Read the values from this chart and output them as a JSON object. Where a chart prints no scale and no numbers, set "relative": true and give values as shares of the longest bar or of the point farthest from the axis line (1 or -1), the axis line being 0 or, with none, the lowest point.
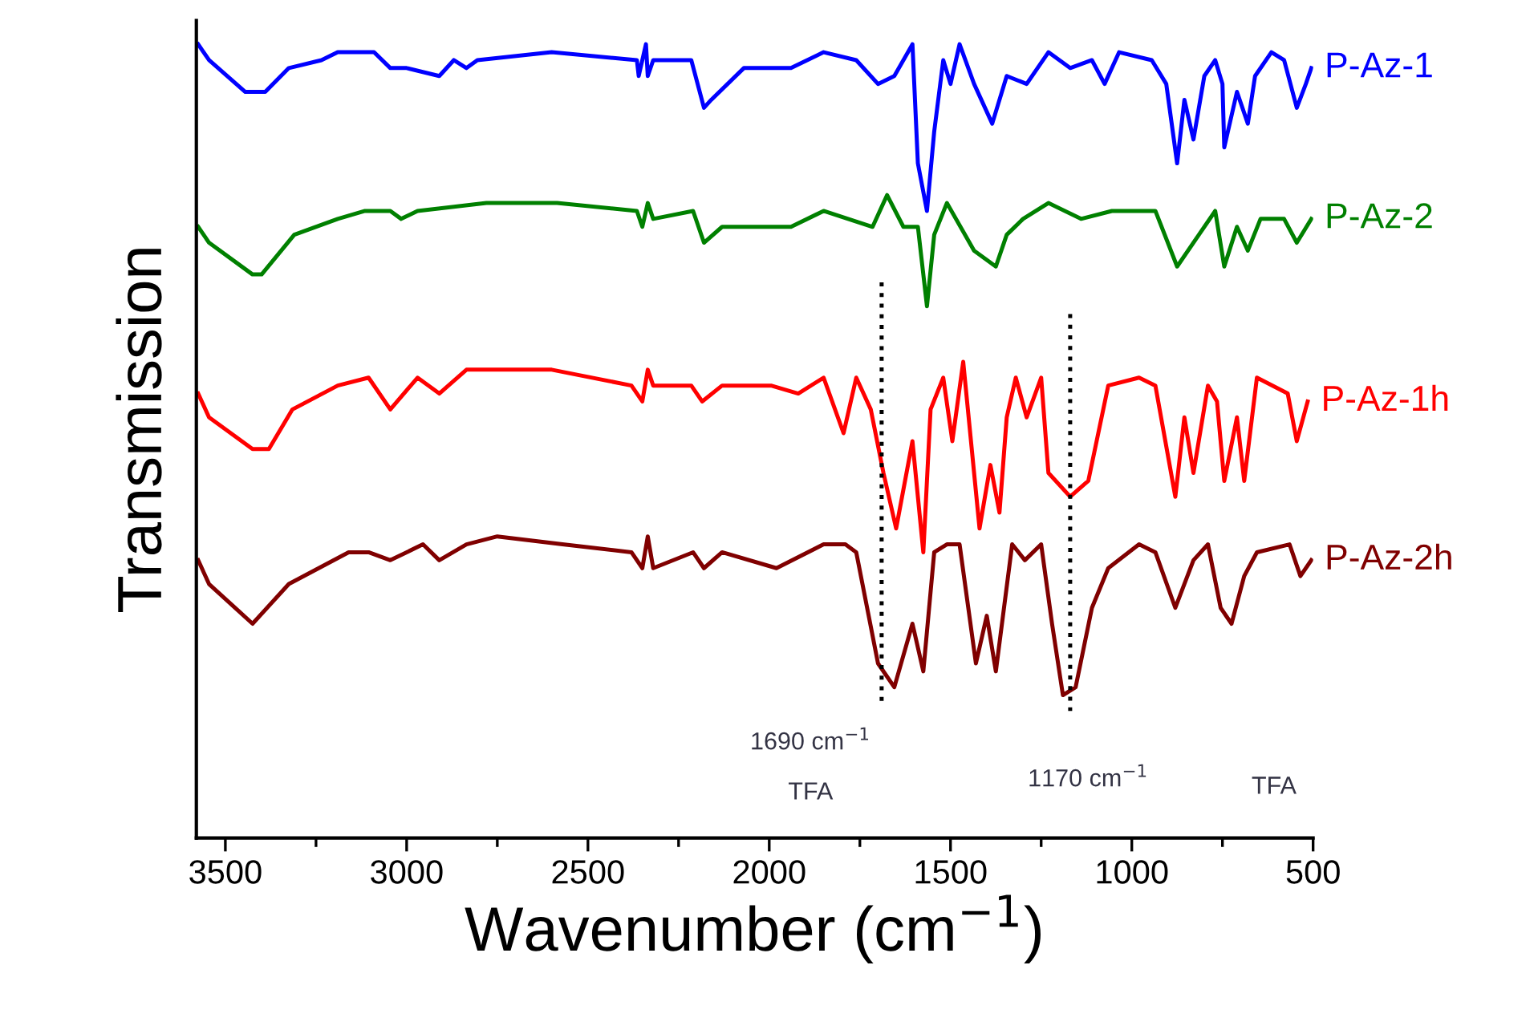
{
  "chart_data": {
    "type": "line",
    "relative": true,
    "xlabel": "Wavenumber (cm$^{−1}$)",
    "ylabel": "Transmission",
    "xlim": [
      3580,
      500
    ],
    "xticks": [
      3500,
      3000,
      2500,
      2000,
      1500,
      1000,
      500
    ],
    "legend": false,
    "grid": false,
    "tick_labels": "x",
    "series": [
      {
        "name": "P-Az-1",
        "color": "#0000ff",
        "x": [
          3575,
          3545,
          3445,
          3390,
          3325,
          3235,
          3190,
          3090,
          3045,
          3000,
          2910,
          2870,
          2835,
          2805,
          2600,
          2365,
          2360,
          2340,
          2335,
          2320,
          2215,
          2180,
          2160,
          2070,
          1940,
          1850,
          1760,
          1700,
          1655,
          1605,
          1590,
          1565,
          1545,
          1520,
          1500,
          1475,
          1435,
          1385,
          1345,
          1290,
          1230,
          1170,
          1110,
          1075,
          1035,
          945,
          905,
          875,
          855,
          830,
          800,
          770,
          750,
          745,
          710,
          680,
          660,
          615,
          580,
          545,
          520,
          505
        ],
        "values": [
          1.0,
          0.98,
          0.94,
          0.94,
          0.97,
          0.98,
          0.99,
          0.99,
          0.97,
          0.97,
          0.96,
          0.98,
          0.97,
          0.98,
          0.99,
          0.98,
          0.96,
          1.0,
          0.96,
          0.98,
          0.98,
          0.92,
          0.93,
          0.97,
          0.97,
          0.99,
          0.98,
          0.95,
          0.96,
          1.0,
          0.85,
          0.79,
          0.89,
          0.98,
          0.95,
          1.0,
          0.95,
          0.9,
          0.96,
          0.95,
          0.99,
          0.97,
          0.98,
          0.95,
          0.99,
          0.98,
          0.95,
          0.85,
          0.93,
          0.88,
          0.96,
          0.98,
          0.95,
          0.87,
          0.94,
          0.9,
          0.96,
          0.99,
          0.98,
          0.92,
          0.95,
          0.97
        ]
      },
      {
        "name": "P-Az-2",
        "color": "#008000",
        "x": [
          3575,
          3545,
          3425,
          3400,
          3310,
          3190,
          3115,
          3045,
          3015,
          2970,
          2780,
          2585,
          2365,
          2350,
          2335,
          2320,
          2210,
          2180,
          2130,
          1940,
          1850,
          1715,
          1675,
          1630,
          1590,
          1565,
          1545,
          1510,
          1435,
          1375,
          1345,
          1300,
          1230,
          1140,
          1055,
          935,
          875,
          815,
          770,
          745,
          710,
          680,
          645,
          580,
          545,
          505
        ],
        "values": [
          0.77,
          0.75,
          0.71,
          0.71,
          0.76,
          0.78,
          0.79,
          0.79,
          0.78,
          0.79,
          0.8,
          0.8,
          0.79,
          0.77,
          0.8,
          0.78,
          0.79,
          0.75,
          0.77,
          0.77,
          0.79,
          0.77,
          0.81,
          0.77,
          0.77,
          0.67,
          0.76,
          0.8,
          0.74,
          0.72,
          0.76,
          0.78,
          0.8,
          0.78,
          0.79,
          0.79,
          0.72,
          0.76,
          0.79,
          0.72,
          0.77,
          0.74,
          0.78,
          0.78,
          0.75,
          0.78
        ]
      },
      {
        "name": "P-Az-1h",
        "color": "#ff0000",
        "x": [
          3575,
          3545,
          3425,
          3380,
          3315,
          3190,
          3105,
          3045,
          2970,
          2910,
          2835,
          2750,
          2600,
          2380,
          2350,
          2335,
          2320,
          2215,
          2185,
          2130,
          1995,
          1920,
          1850,
          1795,
          1760,
          1720,
          1685,
          1650,
          1605,
          1575,
          1555,
          1520,
          1495,
          1465,
          1420,
          1390,
          1365,
          1345,
          1320,
          1290,
          1250,
          1230,
          1170,
          1120,
          1065,
          980,
          935,
          880,
          855,
          830,
          790,
          765,
          745,
          710,
          690,
          655,
          570,
          545,
          515
        ],
        "values": [
          0.56,
          0.53,
          0.49,
          0.49,
          0.54,
          0.57,
          0.58,
          0.54,
          0.58,
          0.56,
          0.59,
          0.59,
          0.59,
          0.57,
          0.55,
          0.59,
          0.57,
          0.57,
          0.55,
          0.57,
          0.57,
          0.56,
          0.58,
          0.51,
          0.58,
          0.54,
          0.46,
          0.39,
          0.5,
          0.36,
          0.54,
          0.58,
          0.5,
          0.6,
          0.39,
          0.47,
          0.41,
          0.53,
          0.58,
          0.53,
          0.58,
          0.46,
          0.43,
          0.45,
          0.57,
          0.58,
          0.57,
          0.43,
          0.53,
          0.46,
          0.57,
          0.55,
          0.45,
          0.53,
          0.45,
          0.58,
          0.56,
          0.5,
          0.55
        ]
      },
      {
        "name": "P-Az-2h",
        "color": "#800000",
        "x": [
          3575,
          3545,
          3425,
          3325,
          3160,
          3105,
          3045,
          2955,
          2910,
          2835,
          2750,
          2570,
          2380,
          2350,
          2335,
          2320,
          2210,
          2180,
          2130,
          1980,
          1850,
          1790,
          1760,
          1700,
          1655,
          1605,
          1575,
          1545,
          1510,
          1475,
          1430,
          1400,
          1375,
          1330,
          1295,
          1250,
          1220,
          1190,
          1155,
          1110,
          1065,
          980,
          935,
          880,
          830,
          790,
          755,
          725,
          690,
          655,
          565,
          535,
          505
        ],
        "values": [
          0.35,
          0.32,
          0.27,
          0.32,
          0.36,
          0.36,
          0.35,
          0.37,
          0.35,
          0.37,
          0.38,
          0.37,
          0.36,
          0.34,
          0.38,
          0.34,
          0.36,
          0.34,
          0.36,
          0.34,
          0.37,
          0.37,
          0.36,
          0.22,
          0.19,
          0.27,
          0.21,
          0.36,
          0.37,
          0.37,
          0.22,
          0.28,
          0.21,
          0.37,
          0.35,
          0.37,
          0.27,
          0.18,
          0.19,
          0.29,
          0.34,
          0.37,
          0.36,
          0.29,
          0.35,
          0.37,
          0.29,
          0.27,
          0.33,
          0.36,
          0.37,
          0.33,
          0.35
        ]
      },
      {
        "color": "#000000",
        "line_style": "dotted",
        "x": [
          1690,
          1690
        ],
        "values": [
          0.7,
          0.17
        ]
      },
      {
        "color": "#000000",
        "line_style": "dotted",
        "x": [
          1170,
          1170
        ],
        "values": [
          0.66,
          0.16
        ]
      }
    ],
    "annotations": [
      {
        "text": "1690 cm$^{−1}$",
        "x": 1690,
        "y": 0.17
      },
      "TFA",
      {
        "text": "1170 cm$^{−1}$",
        "x": 1170,
        "y": 0.16
      },
      "TFA"
    ]
  }
}
